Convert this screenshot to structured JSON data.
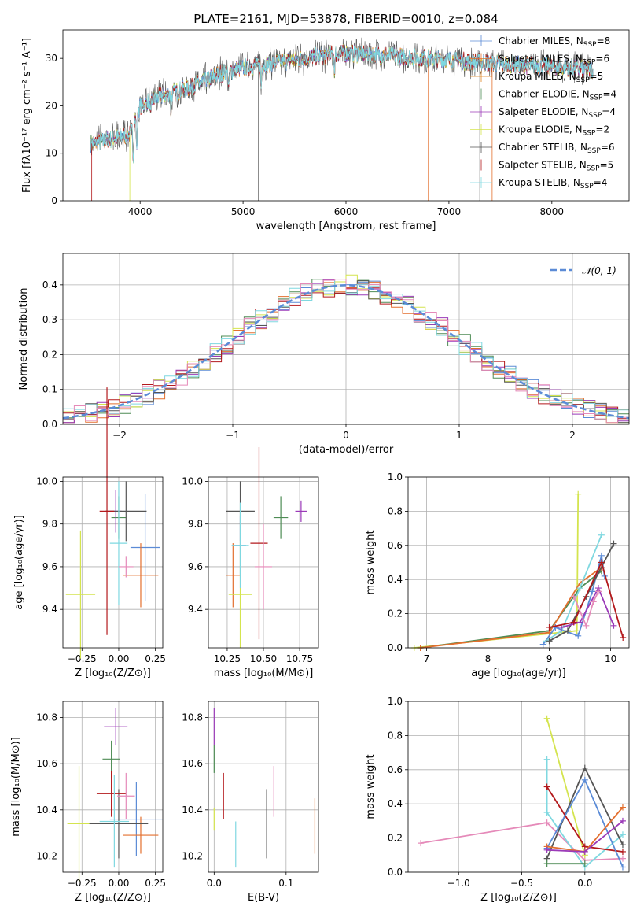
{
  "colors": {
    "Chabrier MILES": "#5b8bd6",
    "Salpeter MILES": "#e36f2e",
    "Kroupa MILES": "#df8520",
    "Chabrier ELODIE": "#4e8c55",
    "Salpeter ELODIE": "#9b3ab8",
    "Kroupa ELODIE": "#d4e44e",
    "Chabrier STELIB": "#555555",
    "Salpeter STELIB": "#b3191c",
    "Kroupa STELIB": "#7fd8e0",
    "extra": "#e58ab9",
    "gauss": "#5b8bd6"
  },
  "chart_data": [
    {
      "id": "spectrum",
      "type": "line",
      "title": "PLATE=2161, MJD=53878, FIBERID=0010, z=0.084",
      "xlabel": "wavelength [Angstrom, rest frame]",
      "ylabel": "Flux [fλ10⁻¹⁷ erg cm⁻² s⁻¹ A⁻¹]",
      "xlim": [
        3250,
        8750
      ],
      "ylim": [
        0,
        36
      ],
      "xticks": [
        4000,
        5000,
        6000,
        7000,
        8000
      ],
      "yticks": [
        0,
        10,
        20,
        30
      ],
      "grid": false,
      "legend_position": "top-right",
      "legend": [
        {
          "name": "Chabrier MILES",
          "nssp": "8"
        },
        {
          "name": "Salpeter MILES",
          "nssp": "6"
        },
        {
          "name": "Kroupa MILES",
          "nssp": "5"
        },
        {
          "name": "Chabrier ELODIE",
          "nssp": "4"
        },
        {
          "name": "Salpeter ELODIE",
          "nssp": "4"
        },
        {
          "name": "Kroupa ELODIE",
          "nssp": "2"
        },
        {
          "name": "Chabrier STELIB",
          "nssp": "6"
        },
        {
          "name": "Salpeter STELIB",
          "nssp": "5"
        },
        {
          "name": "Kroupa STELIB",
          "nssp": "4"
        }
      ],
      "continuum": {
        "x": [
          3520,
          3900,
          4000,
          4200,
          4500,
          4800,
          5000,
          5300,
          5600,
          5900,
          6200,
          6500,
          6800,
          7100,
          7400,
          7800,
          8200,
          8400
        ],
        "y": [
          12,
          14,
          20,
          22,
          24,
          27,
          28,
          29,
          30,
          31,
          31,
          30.5,
          30,
          29.5,
          29,
          28.5,
          28,
          27.5
        ]
      },
      "absorption_lines": [
        {
          "x": 3934,
          "depth": 8
        },
        {
          "x": 3968,
          "depth": 8
        },
        {
          "x": 4102,
          "depth": 4
        },
        {
          "x": 4300,
          "depth": 4
        },
        {
          "x": 4861,
          "depth": 4
        },
        {
          "x": 5175,
          "depth": 5
        },
        {
          "x": 5890,
          "depth": 4
        }
      ],
      "dropout_lines": [
        3530,
        3900,
        5150,
        6800,
        7300,
        7420
      ],
      "wavelength_range": [
        3520,
        8400
      ]
    },
    {
      "id": "residuals",
      "type": "step",
      "xlabel": "(data-model)/error",
      "ylabel": "Normed distribution",
      "xlim": [
        -2.5,
        2.5
      ],
      "ylim": [
        0,
        0.49
      ],
      "xticks": [
        -2,
        -1,
        0,
        1,
        2
      ],
      "yticks": [
        0.0,
        0.1,
        0.2,
        0.3,
        0.4
      ],
      "grid": true,
      "legend_position": "top-right",
      "legend": [
        {
          "name": "𝒩(0, 1)"
        }
      ],
      "bin_edges_start": -2.5,
      "bin_width": 0.1,
      "bin_count": 50
    },
    {
      "id": "age-vs-Z",
      "type": "errorbar",
      "xlabel": "Z [log₁₀(Z/Z⊙)]",
      "ylabel": "age  [log₁₀(age/yr)]",
      "xlim": [
        -0.38,
        0.3
      ],
      "ylim": [
        9.22,
        10.02
      ],
      "xticks": [
        -0.25,
        0.0,
        0.25
      ],
      "xticklabels": [
        "−0.25",
        "0.00",
        "0.25"
      ],
      "yticks": [
        9.4,
        9.6,
        9.8,
        10.0
      ],
      "grid": true,
      "points": [
        {
          "series": "Chabrier MILES",
          "x": 0.18,
          "xerr": 0.1,
          "y": 9.69,
          "yerr": 0.25
        },
        {
          "series": "Salpeter MILES",
          "x": 0.15,
          "xerr": 0.12,
          "y": 9.56,
          "yerr": 0.15
        },
        {
          "series": "Chabrier ELODIE",
          "x": 0.0,
          "xerr": 0.05,
          "y": 9.83,
          "yerr": 0.1
        },
        {
          "series": "Salpeter ELODIE",
          "x": -0.02,
          "xerr": 0.04,
          "y": 9.86,
          "yerr": 0.1
        },
        {
          "series": "Kroupa ELODIE",
          "x": -0.26,
          "xerr": 0.1,
          "y": 9.47,
          "yerr": 0.3
        },
        {
          "series": "Chabrier STELIB",
          "x": 0.05,
          "xerr": 0.14,
          "y": 9.86,
          "yerr": 0.14
        },
        {
          "series": "Salpeter STELIB",
          "x": -0.08,
          "xerr": 0.05,
          "y": 9.86,
          "yerr": 0.58
        },
        {
          "series": "Kroupa STELIB",
          "x": 0.0,
          "xerr": 0.06,
          "y": 9.71,
          "yerr": 0.29
        },
        {
          "series": "extra",
          "x": 0.05,
          "xerr": 0.05,
          "y": 9.6,
          "yerr": 0.05
        }
      ]
    },
    {
      "id": "age-vs-mass",
      "type": "errorbar",
      "xlabel": "mass [log₁₀(M/M⊙)]",
      "ylabel": "",
      "xlim": [
        10.12,
        10.88
      ],
      "ylim": [
        9.22,
        10.02
      ],
      "xticks": [
        10.25,
        10.5,
        10.75
      ],
      "xticklabels": [
        "10.25",
        "10.50",
        "10.75"
      ],
      "yticks": [
        9.4,
        9.6,
        9.8,
        10.0
      ],
      "grid": true,
      "points": [
        {
          "series": "Chabrier MILES",
          "x": 10.34,
          "xerr": 0.04,
          "y": 9.7,
          "yerr": 0.14
        },
        {
          "series": "Salpeter MILES",
          "x": 10.29,
          "xerr": 0.05,
          "y": 9.56,
          "yerr": 0.15
        },
        {
          "series": "Chabrier ELODIE",
          "x": 10.62,
          "xerr": 0.05,
          "y": 9.83,
          "yerr": 0.1
        },
        {
          "series": "Salpeter ELODIE",
          "x": 10.76,
          "xerr": 0.04,
          "y": 9.86,
          "yerr": 0.05
        },
        {
          "series": "Kroupa ELODIE",
          "x": 10.34,
          "xerr": 0.08,
          "y": 9.47,
          "yerr": 0.25
        },
        {
          "series": "Chabrier STELIB",
          "x": 10.34,
          "xerr": 0.1,
          "y": 9.86,
          "yerr": 0.14
        },
        {
          "series": "Salpeter STELIB",
          "x": 10.47,
          "xerr": 0.06,
          "y": 9.71,
          "yerr": 0.45
        },
        {
          "series": "Kroupa STELIB",
          "x": 10.34,
          "xerr": 0.06,
          "y": 9.7,
          "yerr": 0.2
        },
        {
          "series": "extra",
          "x": 10.5,
          "xerr": 0.06,
          "y": 9.6,
          "yerr": 0.2
        }
      ]
    },
    {
      "id": "weight-vs-age",
      "type": "line",
      "xlabel": "age  [log₁₀(age/yr)]",
      "ylabel": "mass weight",
      "xlim": [
        6.7,
        10.3
      ],
      "ylim": [
        0,
        1.0
      ],
      "xticks": [
        7,
        8,
        9,
        10
      ],
      "yticks": [
        0.0,
        0.2,
        0.4,
        0.6,
        0.8,
        1.0
      ],
      "grid": true,
      "series": [
        {
          "name": "Kroupa ELODIE",
          "x": [
            6.8,
            9.45,
            9.47
          ],
          "y": [
            0.0,
            0.1,
            0.9
          ]
        },
        {
          "name": "Chabrier ELODIE",
          "x": [
            6.9,
            9.0,
            9.5,
            9.85
          ],
          "y": [
            0.0,
            0.1,
            0.35,
            0.45
          ]
        },
        {
          "name": "Salpeter MILES",
          "x": [
            6.9,
            9.0,
            9.5,
            9.85
          ],
          "y": [
            0.0,
            0.09,
            0.38,
            0.47
          ]
        },
        {
          "name": "Chabrier MILES",
          "x": [
            8.9,
            9.1,
            9.47,
            9.7,
            9.85,
            9.9
          ],
          "y": [
            0.02,
            0.12,
            0.07,
            0.33,
            0.54,
            0.42
          ]
        },
        {
          "name": "Kroupa STELIB",
          "x": [
            8.95,
            9.2,
            9.5,
            9.85
          ],
          "y": [
            0.04,
            0.1,
            0.35,
            0.66
          ]
        },
        {
          "name": "Chabrier STELIB",
          "x": [
            9.0,
            9.3,
            9.6,
            10.05
          ],
          "y": [
            0.04,
            0.1,
            0.3,
            0.61
          ]
        },
        {
          "name": "Salpeter ELODIE",
          "x": [
            9.2,
            9.5,
            9.8,
            10.05
          ],
          "y": [
            0.12,
            0.15,
            0.35,
            0.13
          ]
        },
        {
          "name": "Salpeter STELIB",
          "x": [
            9.0,
            9.4,
            9.85,
            10.2
          ],
          "y": [
            0.12,
            0.15,
            0.5,
            0.06
          ]
        },
        {
          "name": "extra",
          "x": [
            9.4,
            9.6,
            9.72,
            9.8
          ],
          "y": [
            0.3,
            0.13,
            0.27,
            0.33
          ]
        }
      ]
    },
    {
      "id": "mass-vs-Z",
      "type": "errorbar",
      "xlabel": "Z [log₁₀(Z/Z⊙)]",
      "ylabel": "mass [log₁₀(M/M⊙)]",
      "xlim": [
        -0.38,
        0.3
      ],
      "ylim": [
        10.13,
        10.87
      ],
      "xticks": [
        -0.25,
        0.0,
        0.25
      ],
      "xticklabels": [
        "−0.25",
        "0.00",
        "0.25"
      ],
      "yticks": [
        10.2,
        10.4,
        10.6,
        10.8
      ],
      "grid": true,
      "points": [
        {
          "series": "Chabrier MILES",
          "x": 0.12,
          "xerr": 0.18,
          "y": 10.36,
          "yerr": 0.16
        },
        {
          "series": "Salpeter MILES",
          "x": 0.15,
          "xerr": 0.12,
          "y": 10.29,
          "yerr": 0.08
        },
        {
          "series": "Chabrier ELODIE",
          "x": -0.05,
          "xerr": 0.06,
          "y": 10.62,
          "yerr": 0.08
        },
        {
          "series": "Salpeter ELODIE",
          "x": -0.02,
          "xerr": 0.08,
          "y": 10.76,
          "yerr": 0.08
        },
        {
          "series": "Kroupa ELODIE",
          "x": -0.27,
          "xerr": 0.08,
          "y": 10.34,
          "yerr": 0.25
        },
        {
          "series": "Chabrier STELIB",
          "x": 0.0,
          "xerr": 0.2,
          "y": 10.34,
          "yerr": 0.15
        },
        {
          "series": "Salpeter STELIB",
          "x": -0.05,
          "xerr": 0.1,
          "y": 10.47,
          "yerr": 0.1
        },
        {
          "series": "Kroupa STELIB",
          "x": -0.03,
          "xerr": 0.1,
          "y": 10.35,
          "yerr": 0.2
        },
        {
          "series": "extra",
          "x": 0.05,
          "xerr": 0.06,
          "y": 10.46,
          "yerr": 0.1
        }
      ]
    },
    {
      "id": "mass-vs-EBV",
      "type": "errorbar",
      "xlabel": "E(B-V)",
      "ylabel": "",
      "xlim": [
        -0.008,
        0.145
      ],
      "ylim": [
        10.13,
        10.87
      ],
      "xticks": [
        0.0,
        0.1
      ],
      "xticklabels": [
        "0.0",
        "0.1"
      ],
      "yticks": [
        10.2,
        10.4,
        10.6,
        10.8
      ],
      "grid": true,
      "points": [
        {
          "series": "Salpeter ELODIE",
          "x": 0.0,
          "xerr": 0,
          "y": 10.76,
          "yerr": 0.08
        },
        {
          "series": "Chabrier ELODIE",
          "x": 0.0,
          "xerr": 0,
          "y": 10.62,
          "yerr": 0.06
        },
        {
          "series": "Kroupa ELODIE",
          "x": 0.0,
          "xerr": 0,
          "y": 10.36,
          "yerr": 0.05
        },
        {
          "series": "Salpeter STELIB",
          "x": 0.013,
          "xerr": 0,
          "y": 10.46,
          "yerr": 0.1
        },
        {
          "series": "Kroupa STELIB",
          "x": 0.03,
          "xerr": 0,
          "y": 10.25,
          "yerr": 0.1
        },
        {
          "series": "Chabrier STELIB",
          "x": 0.073,
          "xerr": 0,
          "y": 10.34,
          "yerr": 0.15
        },
        {
          "series": "extra",
          "x": 0.083,
          "xerr": 0,
          "y": 10.48,
          "yerr": 0.11
        },
        {
          "series": "Salpeter MILES",
          "x": 0.14,
          "xerr": 0,
          "y": 10.33,
          "yerr": 0.12
        }
      ]
    },
    {
      "id": "weight-vs-Z",
      "type": "line",
      "xlabel": "Z [log₁₀(Z/Z⊙)]",
      "ylabel": "mass weight",
      "xlim": [
        -1.4,
        0.35
      ],
      "ylim": [
        0,
        1.0
      ],
      "xticks": [
        -1.0,
        -0.5,
        0.0
      ],
      "xticklabels": [
        "−1.0",
        "−0.5",
        "0.0"
      ],
      "yticks": [
        0.0,
        0.2,
        0.4,
        0.6,
        0.8,
        1.0
      ],
      "grid": true,
      "series": [
        {
          "name": "extra",
          "x": [
            -1.3,
            -0.3,
            0.0,
            0.3
          ],
          "y": [
            0.17,
            0.29,
            0.07,
            0.08
          ]
        },
        {
          "name": "Kroupa ELODIE",
          "x": [
            -0.3,
            0.0
          ],
          "y": [
            0.9,
            0.1
          ]
        },
        {
          "name": "Kroupa STELIB",
          "x": [
            -0.3,
            -0.3,
            0.0,
            0.3
          ],
          "y": [
            0.66,
            0.35,
            0.03,
            0.22
          ]
        },
        {
          "name": "Salpeter STELIB",
          "x": [
            -0.3,
            0.0,
            0.3
          ],
          "y": [
            0.5,
            0.15,
            0.12
          ]
        },
        {
          "name": "Chabrier STELIB",
          "x": [
            -0.3,
            0.0,
            0.3
          ],
          "y": [
            0.08,
            0.61,
            0.16
          ]
        },
        {
          "name": "Chabrier MILES",
          "x": [
            -0.3,
            0.0,
            0.3
          ],
          "y": [
            0.14,
            0.54,
            0.03
          ]
        },
        {
          "name": "Salpeter MILES",
          "x": [
            -0.3,
            0.0,
            0.3
          ],
          "y": [
            0.15,
            0.12,
            0.38
          ]
        },
        {
          "name": "Salpeter ELODIE",
          "x": [
            -0.3,
            0.0,
            0.3
          ],
          "y": [
            0.13,
            0.12,
            0.3
          ]
        },
        {
          "name": "Chabrier ELODIE",
          "x": [
            -0.3,
            0.0
          ],
          "y": [
            0.05,
            0.05
          ]
        }
      ]
    }
  ]
}
